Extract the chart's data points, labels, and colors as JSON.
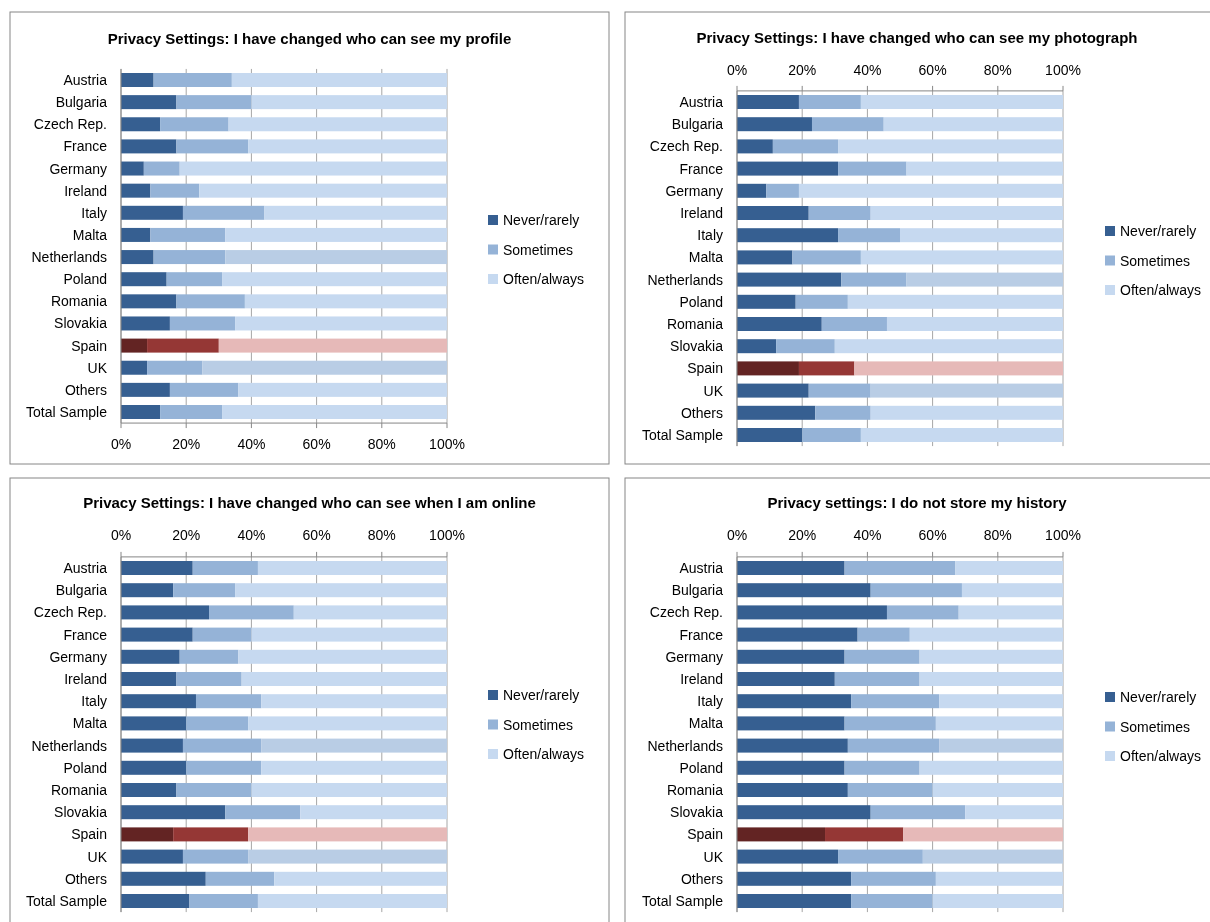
{
  "chart_data": [
    {
      "type": "bar",
      "orientation": "horizontal",
      "stacked": true,
      "title": "Privacy Settings: I have changed who can see my profile",
      "categories": [
        "Austria",
        "Bulgaria",
        "Czech Rep.",
        "France",
        "Germany",
        "Ireland",
        "Italy",
        "Malta",
        "Netherlands",
        "Poland",
        "Romania",
        "Slovakia",
        "Spain",
        "UK",
        "Others",
        "Total Sample"
      ],
      "xlim": [
        0,
        100
      ],
      "xticks": [
        {
          "value": 0,
          "label": "0%"
        },
        {
          "value": 20,
          "label": "20%"
        },
        {
          "value": 40,
          "label": "40%"
        },
        {
          "value": 60,
          "label": "60%"
        },
        {
          "value": 80,
          "label": "80%"
        },
        {
          "value": 100,
          "label": "100%"
        }
      ],
      "grid": "x",
      "legend": "right",
      "series": [
        {
          "name": "Never/rarely",
          "color": "#365f91",
          "colors": [
            "#365f91",
            "#365f91",
            "#365f91",
            "#365f91",
            "#365f91",
            "#365f91",
            "#365f91",
            "#365f91",
            "#365f91",
            "#365f91",
            "#365f91",
            "#365f91",
            "#632423",
            "#365f91",
            "#365f91",
            "#365f91"
          ],
          "values": [
            10,
            17,
            12,
            17,
            7,
            9,
            19,
            9,
            10,
            14,
            17,
            15,
            8,
            8,
            15,
            12
          ]
        },
        {
          "name": "Sometimes",
          "color": "#95b3d7",
          "colors": [
            "#95b3d7",
            "#95b3d7",
            "#95b3d7",
            "#95b3d7",
            "#95b3d7",
            "#95b3d7",
            "#95b3d7",
            "#95b3d7",
            "#95b3d7",
            "#95b3d7",
            "#95b3d7",
            "#95b3d7",
            "#953735",
            "#95b3d7",
            "#95b3d7",
            "#95b3d7"
          ],
          "values": [
            24,
            23,
            21,
            22,
            11,
            15,
            25,
            23,
            22,
            17,
            21,
            20,
            22,
            17,
            21,
            19
          ]
        },
        {
          "name": "Often/always",
          "color": "#c6d9f0",
          "colors": [
            "#c6d9f0",
            "#c6d9f0",
            "#c6d9f0",
            "#c6d9f0",
            "#c6d9f0",
            "#c6d9f0",
            "#c6d9f0",
            "#c6d9f0",
            "#b9cde5",
            "#c6d9f0",
            "#c6d9f0",
            "#c6d9f0",
            "#e6b9b8",
            "#b9cde5",
            "#c6d9f0",
            "#c6d9f0"
          ],
          "values": [
            66,
            60,
            67,
            61,
            82,
            76,
            56,
            68,
            68,
            69,
            62,
            65,
            70,
            75,
            64,
            69
          ]
        }
      ]
    },
    {
      "type": "bar",
      "orientation": "horizontal",
      "stacked": true,
      "title": "Privacy Settings: I have changed who can see my photograph",
      "categories": [
        "Austria",
        "Bulgaria",
        "Czech Rep.",
        "France",
        "Germany",
        "Ireland",
        "Italy",
        "Malta",
        "Netherlands",
        "Poland",
        "Romania",
        "Slovakia",
        "Spain",
        "UK",
        "Others",
        "Total Sample"
      ],
      "xlim": [
        0,
        100
      ],
      "xticks": [
        {
          "value": 0,
          "label": "0%"
        },
        {
          "value": 20,
          "label": "20%"
        },
        {
          "value": 40,
          "label": "40%"
        },
        {
          "value": 60,
          "label": "60%"
        },
        {
          "value": 80,
          "label": "80%"
        },
        {
          "value": 100,
          "label": "100%"
        }
      ],
      "grid": "x",
      "legend": "right",
      "series": [
        {
          "name": "Never/rarely",
          "color": "#365f91",
          "colors": [
            "#365f91",
            "#365f91",
            "#365f91",
            "#365f91",
            "#365f91",
            "#365f91",
            "#365f91",
            "#365f91",
            "#365f91",
            "#365f91",
            "#365f91",
            "#365f91",
            "#632423",
            "#365f91",
            "#365f91",
            "#365f91"
          ],
          "values": [
            19,
            23,
            11,
            31,
            9,
            22,
            31,
            17,
            32,
            18,
            26,
            12,
            19,
            22,
            24,
            20
          ]
        },
        {
          "name": "Sometimes",
          "color": "#95b3d7",
          "colors": [
            "#95b3d7",
            "#95b3d7",
            "#95b3d7",
            "#95b3d7",
            "#95b3d7",
            "#95b3d7",
            "#95b3d7",
            "#95b3d7",
            "#95b3d7",
            "#95b3d7",
            "#95b3d7",
            "#95b3d7",
            "#953735",
            "#95b3d7",
            "#95b3d7",
            "#95b3d7"
          ],
          "values": [
            19,
            22,
            20,
            21,
            10,
            19,
            19,
            21,
            20,
            16,
            20,
            18,
            17,
            19,
            17,
            18
          ]
        },
        {
          "name": "Often/always",
          "color": "#c6d9f0",
          "colors": [
            "#c6d9f0",
            "#c6d9f0",
            "#c6d9f0",
            "#c6d9f0",
            "#c6d9f0",
            "#c6d9f0",
            "#c6d9f0",
            "#c6d9f0",
            "#b9cde5",
            "#c6d9f0",
            "#c6d9f0",
            "#c6d9f0",
            "#e6b9b8",
            "#b9cde5",
            "#c6d9f0",
            "#c6d9f0"
          ],
          "values": [
            62,
            55,
            69,
            48,
            81,
            59,
            50,
            62,
            48,
            66,
            54,
            70,
            64,
            59,
            59,
            62
          ]
        }
      ]
    },
    {
      "type": "bar",
      "orientation": "horizontal",
      "stacked": true,
      "title": "Privacy Settings: I have changed who can see when I am online",
      "categories": [
        "Austria",
        "Bulgaria",
        "Czech Rep.",
        "France",
        "Germany",
        "Ireland",
        "Italy",
        "Malta",
        "Netherlands",
        "Poland",
        "Romania",
        "Slovakia",
        "Spain",
        "UK",
        "Others",
        "Total Sample"
      ],
      "xlim": [
        0,
        100
      ],
      "xticks": [
        {
          "value": 0,
          "label": "0%"
        },
        {
          "value": 20,
          "label": "20%"
        },
        {
          "value": 40,
          "label": "40%"
        },
        {
          "value": 60,
          "label": "60%"
        },
        {
          "value": 80,
          "label": "80%"
        },
        {
          "value": 100,
          "label": "100%"
        }
      ],
      "grid": "x",
      "legend": "right",
      "series": [
        {
          "name": "Never/rarely",
          "color": "#365f91",
          "colors": [
            "#365f91",
            "#365f91",
            "#365f91",
            "#365f91",
            "#365f91",
            "#365f91",
            "#365f91",
            "#365f91",
            "#365f91",
            "#365f91",
            "#365f91",
            "#365f91",
            "#632423",
            "#365f91",
            "#365f91",
            "#365f91"
          ],
          "values": [
            22,
            16,
            27,
            22,
            18,
            17,
            23,
            20,
            19,
            20,
            17,
            32,
            16,
            19,
            26,
            21
          ]
        },
        {
          "name": "Sometimes",
          "color": "#95b3d7",
          "colors": [
            "#95b3d7",
            "#95b3d7",
            "#95b3d7",
            "#95b3d7",
            "#95b3d7",
            "#95b3d7",
            "#95b3d7",
            "#95b3d7",
            "#95b3d7",
            "#95b3d7",
            "#95b3d7",
            "#95b3d7",
            "#953735",
            "#95b3d7",
            "#95b3d7",
            "#95b3d7"
          ],
          "values": [
            20,
            19,
            26,
            18,
            18,
            20,
            20,
            19,
            24,
            23,
            23,
            23,
            23,
            20,
            21,
            21
          ]
        },
        {
          "name": "Often/always",
          "color": "#c6d9f0",
          "colors": [
            "#c6d9f0",
            "#c6d9f0",
            "#c6d9f0",
            "#c6d9f0",
            "#c6d9f0",
            "#c6d9f0",
            "#c6d9f0",
            "#c6d9f0",
            "#b9cde5",
            "#c6d9f0",
            "#c6d9f0",
            "#c6d9f0",
            "#e6b9b8",
            "#b9cde5",
            "#c6d9f0",
            "#c6d9f0"
          ],
          "values": [
            58,
            65,
            47,
            60,
            64,
            63,
            57,
            61,
            57,
            57,
            60,
            45,
            61,
            61,
            53,
            58
          ]
        }
      ]
    },
    {
      "type": "bar",
      "orientation": "horizontal",
      "stacked": true,
      "title": "Privacy settings: I do not store my history",
      "categories": [
        "Austria",
        "Bulgaria",
        "Czech Rep.",
        "France",
        "Germany",
        "Ireland",
        "Italy",
        "Malta",
        "Netherlands",
        "Poland",
        "Romania",
        "Slovakia",
        "Spain",
        "UK",
        "Others",
        "Total Sample"
      ],
      "xlim": [
        0,
        100
      ],
      "xticks": [
        {
          "value": 0,
          "label": "0%"
        },
        {
          "value": 20,
          "label": "20%"
        },
        {
          "value": 40,
          "label": "40%"
        },
        {
          "value": 60,
          "label": "60%"
        },
        {
          "value": 80,
          "label": "80%"
        },
        {
          "value": 100,
          "label": "100%"
        }
      ],
      "grid": "x",
      "legend": "right",
      "series": [
        {
          "name": "Never/rarely",
          "color": "#365f91",
          "colors": [
            "#365f91",
            "#365f91",
            "#365f91",
            "#365f91",
            "#365f91",
            "#365f91",
            "#365f91",
            "#365f91",
            "#365f91",
            "#365f91",
            "#365f91",
            "#365f91",
            "#632423",
            "#365f91",
            "#365f91",
            "#365f91"
          ],
          "values": [
            33,
            41,
            46,
            37,
            33,
            30,
            35,
            33,
            34,
            33,
            34,
            41,
            27,
            31,
            35,
            35
          ]
        },
        {
          "name": "Sometimes",
          "color": "#95b3d7",
          "colors": [
            "#95b3d7",
            "#95b3d7",
            "#95b3d7",
            "#95b3d7",
            "#95b3d7",
            "#95b3d7",
            "#95b3d7",
            "#95b3d7",
            "#95b3d7",
            "#95b3d7",
            "#95b3d7",
            "#95b3d7",
            "#953735",
            "#95b3d7",
            "#95b3d7",
            "#95b3d7"
          ],
          "values": [
            34,
            28,
            22,
            16,
            23,
            26,
            27,
            28,
            28,
            23,
            26,
            29,
            24,
            26,
            26,
            25
          ]
        },
        {
          "name": "Often/always",
          "color": "#c6d9f0",
          "colors": [
            "#c6d9f0",
            "#c6d9f0",
            "#c6d9f0",
            "#c6d9f0",
            "#c6d9f0",
            "#c6d9f0",
            "#c6d9f0",
            "#c6d9f0",
            "#b9cde5",
            "#c6d9f0",
            "#c6d9f0",
            "#c6d9f0",
            "#e6b9b8",
            "#b9cde5",
            "#c6d9f0",
            "#c6d9f0"
          ],
          "values": [
            33,
            31,
            32,
            47,
            44,
            44,
            38,
            39,
            38,
            44,
            40,
            30,
            49,
            43,
            39,
            40
          ]
        }
      ]
    }
  ]
}
